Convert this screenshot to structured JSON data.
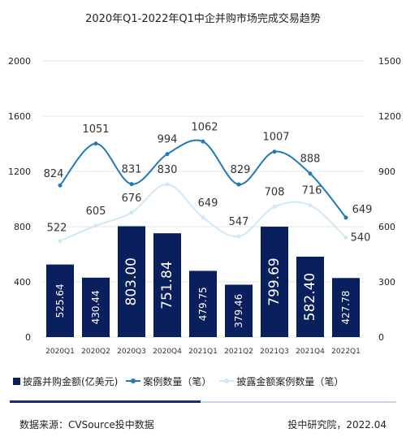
{
  "title": "2020年Q1-2022年Q1中企并购市场完成交易趋势",
  "source_text": "数据来源：CVSource投中数据",
  "brand_text": "投中研究院，2022.04",
  "colors": {
    "bar": "#0a1f5e",
    "line1": "#1f7ab8",
    "line2": "#cdeaf6",
    "grid": "#e6e6e6"
  },
  "chart_data": {
    "type": "bar",
    "categories": [
      "2020Q1",
      "2020Q2",
      "2020Q3",
      "2020Q4",
      "2021Q1",
      "2021Q2",
      "2021Q3",
      "2021Q4",
      "2022Q1"
    ],
    "left_axis": {
      "min": 0,
      "max": 2000,
      "ticks": [
        0,
        400,
        800,
        1200,
        1600,
        2000
      ]
    },
    "right_axis": {
      "min": 0,
      "max": 1500,
      "ticks": [
        0,
        300,
        600,
        900,
        1200,
        1500
      ]
    },
    "grid": true,
    "legend_position": "bottom",
    "series": [
      {
        "name": "披露并购金额(亿美元)",
        "type": "bar",
        "axis": "left",
        "values": [
          525.64,
          430.44,
          803.0,
          751.84,
          479.75,
          379.46,
          799.69,
          582.4,
          427.78
        ],
        "labels": [
          "525.64",
          "430.44",
          "803.00",
          "751.84",
          "479.75",
          "379.46",
          "799.69",
          "582.40",
          "427.78"
        ]
      },
      {
        "name": "案例数量（笔）",
        "type": "line",
        "axis": "right",
        "values": [
          824,
          1051,
          831,
          994,
          1062,
          829,
          1007,
          888,
          649
        ]
      },
      {
        "name": "披露金额案例数量（笔）",
        "type": "line",
        "axis": "right",
        "values": [
          522,
          605,
          676,
          830,
          649,
          547,
          708,
          716,
          540
        ]
      }
    ]
  }
}
